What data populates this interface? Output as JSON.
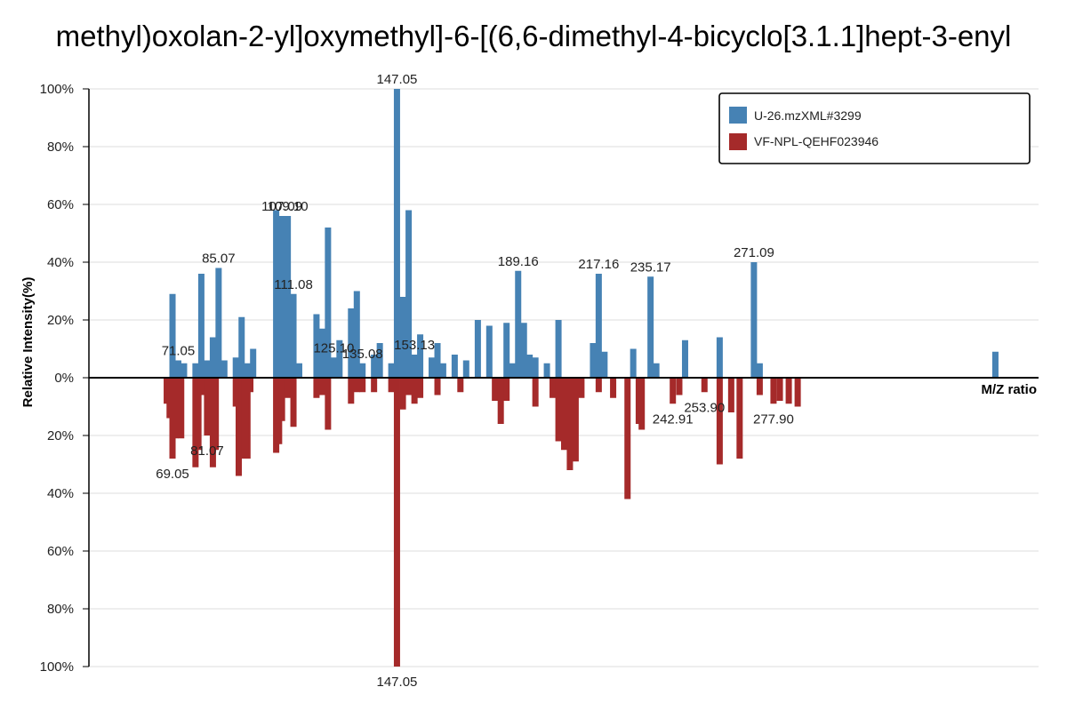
{
  "chart_data": {
    "type": "bar",
    "title": "methyl)oxolan-2-yl]oxymethyl]-6-[(6,6-dimethyl-4-bicyclo[3.1.1]hept-3-enyl",
    "xlabel": "M/Z ratio",
    "ylabel": "Relative Intensity(%)",
    "xlim": [
      40,
      370
    ],
    "ylim": [
      -100,
      100
    ],
    "y_ticks": [
      "100%",
      "80%",
      "60%",
      "40%",
      "20%",
      "0%",
      "20%",
      "40%",
      "60%",
      "80%",
      "100%"
    ],
    "grid": true,
    "legend_position": "top-right",
    "colors": {
      "top": "#4682b4",
      "bottom": "#a52a2a",
      "axis": "#000000",
      "grid": "#dddddd"
    },
    "series": [
      {
        "name": "U-26.mzXML#3299",
        "direction": "up",
        "x": [
          69.05,
          71.05,
          73.05,
          77.04,
          79.06,
          81.07,
          83.08,
          85.07,
          87.06,
          91.05,
          93.07,
          95.09,
          97.07,
          105.07,
          107.09,
          109.1,
          111.08,
          113.07,
          119.08,
          121.1,
          123.08,
          125.1,
          127.08,
          131.09,
          133.1,
          135.08,
          139.08,
          141.09,
          145.09,
          147.05,
          149.1,
          151.11,
          153.13,
          155.12,
          159.12,
          161.13,
          163.1,
          167.11,
          171.1,
          175.15,
          179.14,
          185.13,
          187.15,
          189.16,
          191.17,
          193.15,
          195.16,
          199.15,
          203.17,
          215.18,
          217.16,
          219.17,
          229.15,
          235.17,
          237.18,
          247.17,
          259.19,
          271.09,
          273.1,
          355.0
        ],
        "values": [
          29,
          6,
          5,
          5,
          36,
          6,
          14,
          38,
          6,
          7,
          21,
          5,
          10,
          58,
          56,
          56,
          29,
          5,
          22,
          17,
          52,
          7,
          13,
          24,
          30,
          5,
          8,
          12,
          5,
          100,
          28,
          58,
          8,
          15,
          7,
          12,
          5,
          8,
          6,
          20,
          18,
          19,
          5,
          37,
          19,
          8,
          7,
          5,
          20,
          12,
          36,
          9,
          10,
          35,
          5,
          13,
          14,
          40,
          5,
          9
        ]
      },
      {
        "name": "VF-NPL-QEHF023946",
        "direction": "down",
        "x": [
          67.05,
          68.05,
          69.05,
          70.06,
          71.05,
          72.06,
          77.04,
          78.05,
          79.06,
          81.07,
          82.08,
          83.08,
          84.08,
          91.05,
          92.06,
          93.07,
          94.08,
          95.09,
          96.09,
          105.07,
          106.08,
          107.09,
          109.1,
          111.08,
          119.08,
          121.1,
          123.08,
          131.09,
          133.1,
          135.08,
          139.08,
          145.09,
          147.05,
          149.1,
          151.11,
          153.13,
          155.12,
          161.13,
          169.1,
          181.1,
          183.12,
          185.13,
          195.16,
          201.15,
          203.17,
          205.15,
          207.14,
          209.14,
          211.15,
          217.16,
          222.17,
          227.17,
          231.08,
          232.1,
          242.91,
          245.16,
          253.9,
          259.19,
          263.2,
          266.13,
          273.1,
          277.9,
          280.1,
          283.2,
          286.3
        ],
        "values": [
          9,
          14,
          28,
          21,
          6,
          21,
          31,
          25,
          6,
          20,
          12,
          31,
          25,
          10,
          34,
          27,
          28,
          28,
          5,
          26,
          23,
          15,
          7,
          17,
          7,
          6,
          18,
          9,
          5,
          5,
          5,
          5,
          100,
          11,
          6,
          9,
          7,
          6,
          5,
          8,
          16,
          8,
          10,
          7,
          22,
          25,
          32,
          29,
          7,
          5,
          7,
          42,
          16,
          18,
          9,
          6,
          5,
          30,
          12,
          28,
          6,
          9,
          8,
          9,
          10
        ]
      }
    ],
    "labels_top": [
      "71.05",
      "85.07",
      "107.09",
      "109.10",
      "111.08",
      "125.10",
      "135.08",
      "147.05",
      "153.13",
      "189.16",
      "217.16",
      "235.17",
      "271.09"
    ],
    "labels_bottom": [
      "69.05",
      "81.07",
      "147.05",
      "242.91",
      "253.90",
      "277.90"
    ],
    "label_map_top": {
      "71.05": 71.05,
      "85.07": 85.07,
      "107.09": 107.09,
      "109.10": 109.1,
      "111.08": 111.08,
      "125.10": 125.1,
      "135.08": 135.08,
      "147.05": 147.05,
      "153.13": 153.13,
      "189.16": 189.16,
      "217.16": 217.16,
      "235.17": 235.17,
      "271.09": 271.09
    },
    "label_map_bottom": {
      "69.05": 69.05,
      "81.07": 81.07,
      "147.05": 147.05,
      "242.91": 242.91,
      "253.90": 253.9,
      "277.90": 277.9
    }
  }
}
